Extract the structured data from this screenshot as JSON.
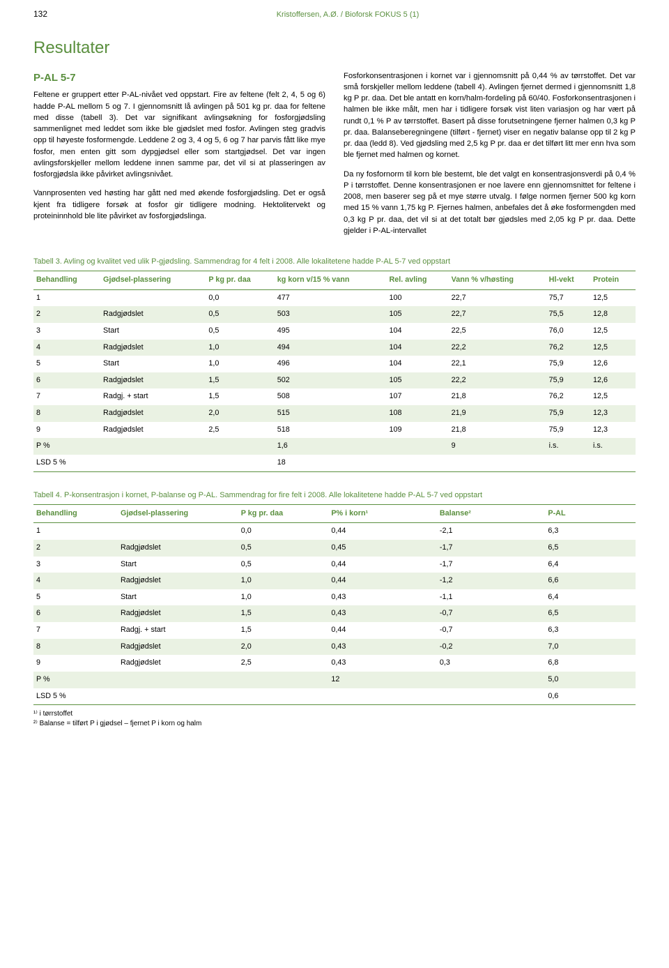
{
  "header": {
    "page_number": "132",
    "running_head": "Kristoffersen, A.Ø. / Bioforsk FOKUS 5 (1)"
  },
  "section": {
    "title": "Resultater",
    "subtitle": "P-AL 5-7",
    "left_col": [
      "Feltene er gruppert etter P-AL-nivået ved oppstart. Fire av feltene (felt 2, 4, 5 og 6) hadde P-AL mellom 5 og 7. I gjennomsnitt lå avlingen på 501 kg pr. daa for feltene med disse (tabell 3). Det var signifikant avlingsøkning for fosforgjødsling sammenlignet med leddet som ikke ble gjødslet med fosfor. Avlingen steg gradvis opp til høyeste fosformengde. Leddene 2 og 3, 4 og 5, 6 og 7 har parvis fått like mye fosfor, men enten gitt som dypgjødsel eller som startgjødsel. Det var ingen avlingsforskjeller mellom leddene innen samme par, det vil si at plasseringen av fosforgjødsla ikke påvirket avlingsnivået.",
      "Vannprosenten ved høsting har gått ned med økende fosforgjødsling. Det er også kjent fra tidligere forsøk at fosfor gir tidligere modning. Hektolitervekt og proteininnhold ble lite påvirket av fosforgjødslinga."
    ],
    "right_col": [
      "Fosforkonsentrasjonen i kornet var i gjennomsnitt på 0,44 % av tørrstoffet. Det var små forskjeller mellom leddene (tabell 4). Avlingen fjernet dermed i gjennomsnitt 1,8 kg P pr. daa. Det ble antatt en korn/halm-fordeling på 60/40. Fosforkonsentrasjonen i halmen ble ikke målt, men har i tidligere forsøk vist liten variasjon og har vært på rundt 0,1 % P av tørrstoffet. Basert på disse forutsetningene fjerner halmen 0,3 kg P pr. daa. Balanseberegningene (tilført - fjernet) viser en negativ balanse opp til 2 kg P pr. daa (ledd 8). Ved gjødsling med 2,5 kg P pr. daa er det tilført litt mer enn hva som ble fjernet med halmen og kornet.",
      "Da ny fosfornorm til korn ble bestemt, ble det valgt en konsentrasjonsverdi på 0,4 % P i tørrstoffet. Denne konsentrasjonen er noe lavere enn gjennomsnittet for feltene i 2008, men baserer seg på et mye større utvalg. I følge normen fjerner 500 kg korn med 15 % vann 1,75 kg P. Fjernes halmen, anbefales det å øke fosformengden med 0,3 kg P pr. daa, det vil si at det totalt bør gjødsles med 2,05 kg P pr. daa. Dette gjelder i P-AL-intervallet"
    ]
  },
  "table3": {
    "caption": "Tabell 3. Avling og kvalitet ved ulik P-gjødsling. Sammendrag for 4 felt i 2008. Alle lokalitetene hadde P-AL 5-7 ved oppstart",
    "columns": [
      "Behandling",
      "Gjødsel-plassering",
      "P kg pr. daa",
      "kg korn v/15 % vann",
      "Rel. avling",
      "Vann % v/høsting",
      "Hl-vekt",
      "Protein"
    ],
    "rows": [
      [
        "1",
        "",
        "0,0",
        "477",
        "100",
        "22,7",
        "75,7",
        "12,5"
      ],
      [
        "2",
        "Radgjødslet",
        "0,5",
        "503",
        "105",
        "22,7",
        "75,5",
        "12,8"
      ],
      [
        "3",
        "Start",
        "0,5",
        "495",
        "104",
        "22,5",
        "76,0",
        "12,5"
      ],
      [
        "4",
        "Radgjødslet",
        "1,0",
        "494",
        "104",
        "22,2",
        "76,2",
        "12,5"
      ],
      [
        "5",
        "Start",
        "1,0",
        "496",
        "104",
        "22,1",
        "75,9",
        "12,6"
      ],
      [
        "6",
        "Radgjødslet",
        "1,5",
        "502",
        "105",
        "22,2",
        "75,9",
        "12,6"
      ],
      [
        "7",
        "Radgj. + start",
        "1,5",
        "508",
        "107",
        "21,8",
        "76,2",
        "12,5"
      ],
      [
        "8",
        "Radgjødslet",
        "2,0",
        "515",
        "108",
        "21,9",
        "75,9",
        "12,3"
      ],
      [
        "9",
        "Radgjødslet",
        "2,5",
        "518",
        "109",
        "21,8",
        "75,9",
        "12,3"
      ],
      [
        "P %",
        "",
        "",
        "1,6",
        "",
        "9",
        "i.s.",
        "i.s."
      ],
      [
        "LSD 5 %",
        "",
        "",
        "18",
        "",
        "",
        "",
        ""
      ]
    ],
    "shaded_rows": [
      1,
      3,
      5,
      7,
      9
    ]
  },
  "table4": {
    "caption": "Tabell 4. P-konsentrasjon i kornet, P-balanse og P-AL. Sammendrag for fire felt i 2008. Alle lokalitetene hadde P-AL 5-7 ved oppstart",
    "columns": [
      "Behandling",
      "Gjødsel-plassering",
      "P kg pr. daa",
      "P% i korn¹",
      "Balanse²",
      "P-AL"
    ],
    "rows": [
      [
        "1",
        "",
        "0,0",
        "0,44",
        "-2,1",
        "6,3"
      ],
      [
        "2",
        "Radgjødslet",
        "0,5",
        "0,45",
        "-1,7",
        "6,5"
      ],
      [
        "3",
        "Start",
        "0,5",
        "0,44",
        "-1,7",
        "6,4"
      ],
      [
        "4",
        "Radgjødslet",
        "1,0",
        "0,44",
        "-1,2",
        "6,6"
      ],
      [
        "5",
        "Start",
        "1,0",
        "0,43",
        "-1,1",
        "6,4"
      ],
      [
        "6",
        "Radgjødslet",
        "1,5",
        "0,43",
        "-0,7",
        "6,5"
      ],
      [
        "7",
        "Radgj. + start",
        "1,5",
        "0,44",
        "-0,7",
        "6,3"
      ],
      [
        "8",
        "Radgjødslet",
        "2,0",
        "0,43",
        "-0,2",
        "7,0"
      ],
      [
        "9",
        "Radgjødslet",
        "2,5",
        "0,43",
        "0,3",
        "6,8"
      ],
      [
        "P %",
        "",
        "",
        "12",
        "",
        "5,0"
      ],
      [
        "LSD 5 %",
        "",
        "",
        "",
        "",
        "0,6"
      ]
    ],
    "shaded_rows": [
      1,
      3,
      5,
      7,
      9
    ],
    "footnotes": [
      "¹⁾ i tørrstoffet",
      "²⁾ Balanse = tilført P i gjødsel – fjernet P i korn og halm"
    ]
  },
  "colors": {
    "accent": "#5a8f3e",
    "shade": "#eaf2e3",
    "text": "#000000",
    "background": "#ffffff"
  }
}
